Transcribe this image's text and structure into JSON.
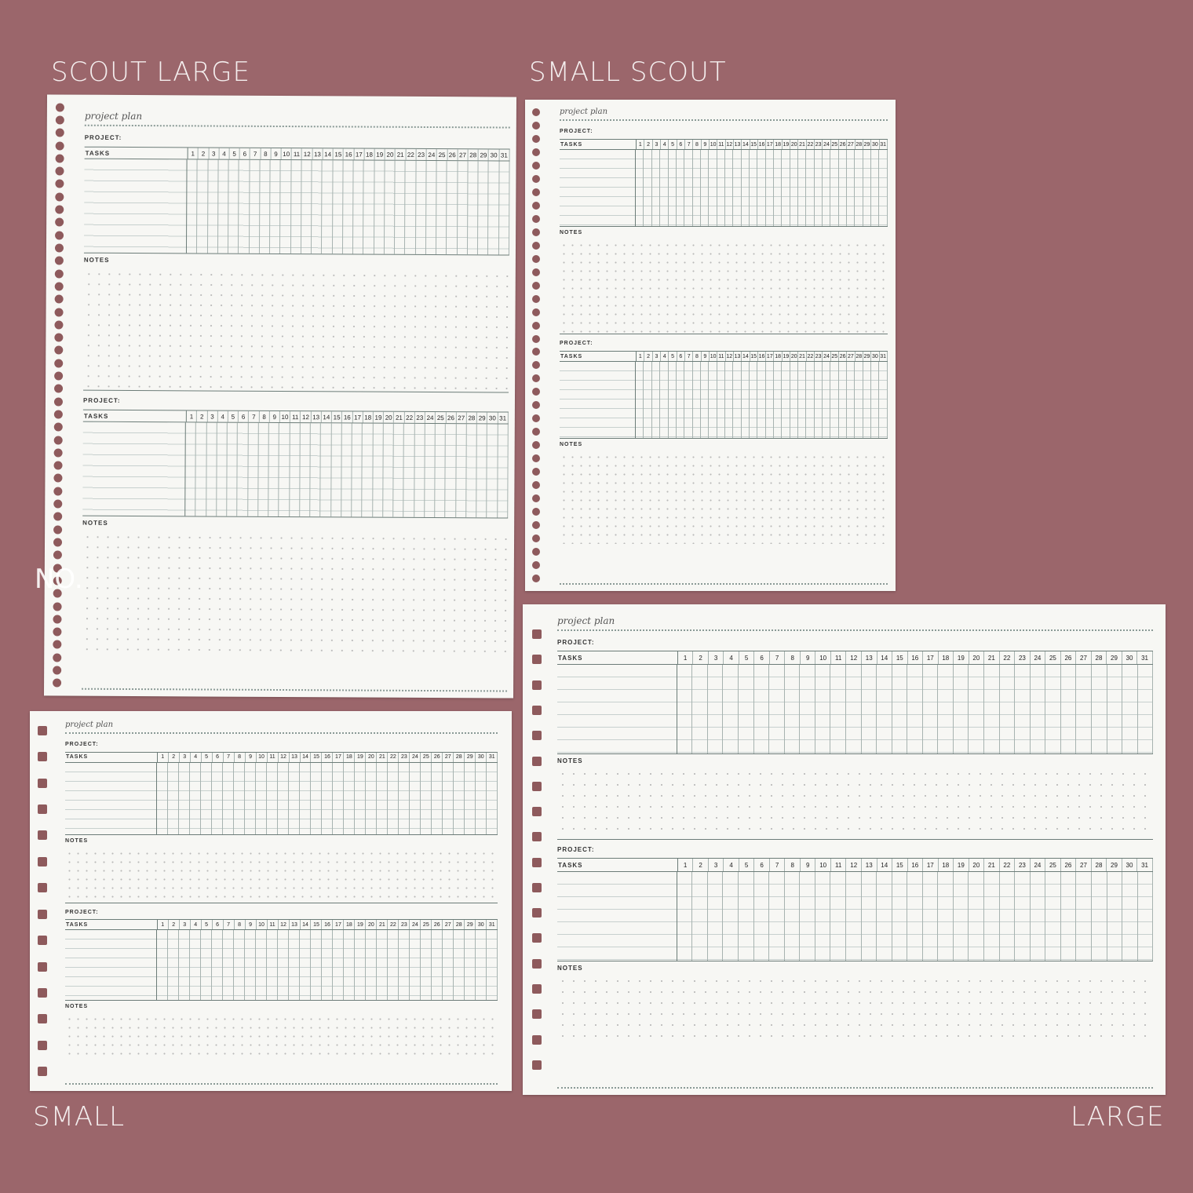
{
  "background_color": "#9b666b",
  "watermark": "NO.",
  "labels": {
    "scout_large": "SCOUT LARGE",
    "small_scout": "SMALL SCOUT",
    "small": "SMALL",
    "large": "LARGE"
  },
  "sheet": {
    "title": "project plan",
    "project_label": "PROJECT:",
    "tasks_label": "TASKS",
    "notes_label": "NOTES",
    "days": [
      "1",
      "2",
      "3",
      "4",
      "5",
      "6",
      "7",
      "8",
      "9",
      "10",
      "11",
      "12",
      "13",
      "14",
      "15",
      "16",
      "17",
      "18",
      "19",
      "20",
      "21",
      "22",
      "23",
      "24",
      "25",
      "26",
      "27",
      "28",
      "29",
      "30",
      "31"
    ]
  },
  "pages": [
    {
      "id": "scout_large",
      "hole_shape": "circle",
      "sections": 2
    },
    {
      "id": "small_scout",
      "hole_shape": "circle",
      "sections": 2
    },
    {
      "id": "small",
      "hole_shape": "square",
      "sections": 2
    },
    {
      "id": "large",
      "hole_shape": "square",
      "sections": 2
    }
  ]
}
